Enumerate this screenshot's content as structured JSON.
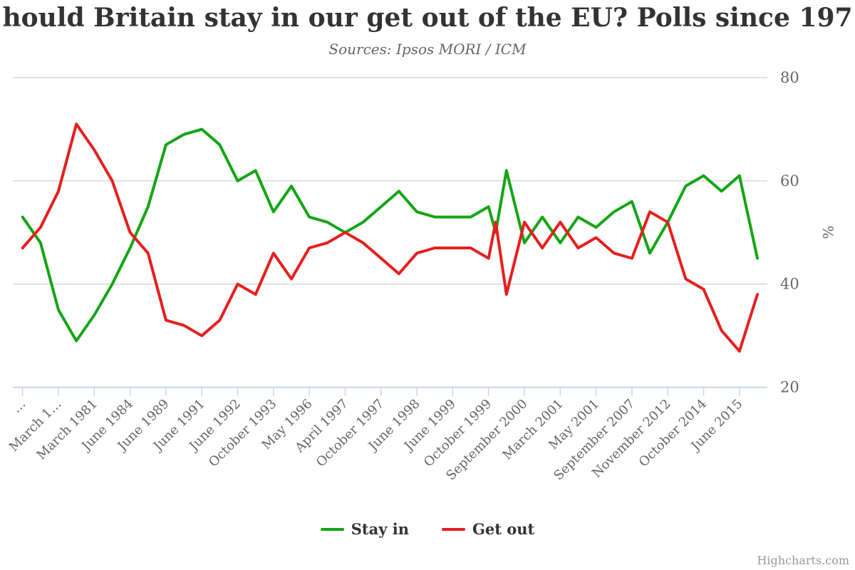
{
  "header": {
    "title_visible": "hould Britain stay in our get out of the EU? Polls since 197",
    "subtitle": "Sources: Ipsos MORI / ICM"
  },
  "credits": "Highcharts.com",
  "colors": {
    "stay_in": "#14A514",
    "get_out": "#E61E1E",
    "grid": "#D9D9D9",
    "axis": "#CCD6EB",
    "label_text": "#666666",
    "title_text": "#333333",
    "credits_text": "#999999"
  },
  "chart_data": {
    "type": "line",
    "title": "hould Britain stay in our get out of the EU? Polls since 197",
    "subtitle": "Sources: Ipsos MORI / ICM",
    "ylabel": "%",
    "ylim": [
      20,
      80
    ],
    "y_ticks": [
      80,
      60,
      40,
      20
    ],
    "grid": "horizontal",
    "legend_position": "bottom-center",
    "x_axis": {
      "tick_labels": [
        {
          "x": 0,
          "label": "…"
        },
        {
          "x": 2,
          "label": "March 1…"
        },
        {
          "x": 4,
          "label": "March 1981"
        },
        {
          "x": 6,
          "label": "June 1984"
        },
        {
          "x": 8,
          "label": "June 1989"
        },
        {
          "x": 10,
          "label": "June 1991"
        },
        {
          "x": 12,
          "label": "June 1992"
        },
        {
          "x": 14,
          "label": "October 1993"
        },
        {
          "x": 16,
          "label": "May 1996"
        },
        {
          "x": 18,
          "label": "April 1997"
        },
        {
          "x": 20,
          "label": "October 1997"
        },
        {
          "x": 22,
          "label": "June 1998"
        },
        {
          "x": 24,
          "label": "June 1999"
        },
        {
          "x": 26,
          "label": "October 1999"
        },
        {
          "x": 28,
          "label": "September 2000"
        },
        {
          "x": 30,
          "label": "March 2001"
        },
        {
          "x": 32,
          "label": "May 2001"
        },
        {
          "x": 34,
          "label": "September 2007"
        },
        {
          "x": 36,
          "label": "November 2012"
        },
        {
          "x": 38,
          "label": "October 2014"
        },
        {
          "x": 40,
          "label": "June 2015"
        }
      ]
    },
    "series": [
      {
        "name": "Stay in",
        "color": "#14A514",
        "points": [
          [
            0,
            53
          ],
          [
            1,
            48
          ],
          [
            2,
            35
          ],
          [
            3,
            29
          ],
          [
            4,
            34
          ],
          [
            5,
            40
          ],
          [
            6,
            47
          ],
          [
            7,
            55
          ],
          [
            8,
            67
          ],
          [
            9,
            69
          ],
          [
            10,
            70
          ],
          [
            11,
            67
          ],
          [
            12,
            60
          ],
          [
            13,
            62
          ],
          [
            14,
            54
          ],
          [
            15,
            59
          ],
          [
            16,
            53
          ],
          [
            17,
            52
          ],
          [
            18,
            50
          ],
          [
            19,
            52
          ],
          [
            20,
            55
          ],
          [
            21,
            58
          ],
          [
            22,
            54
          ],
          [
            23,
            53
          ],
          [
            24,
            53
          ],
          [
            25,
            53
          ],
          [
            26,
            55
          ],
          [
            26.4,
            50
          ],
          [
            27,
            62
          ],
          [
            28,
            48
          ],
          [
            29,
            53
          ],
          [
            30,
            48
          ],
          [
            31,
            53
          ],
          [
            32,
            51
          ],
          [
            33,
            54
          ],
          [
            34,
            56
          ],
          [
            35,
            46
          ],
          [
            36,
            52
          ],
          [
            37,
            59
          ],
          [
            38,
            61
          ],
          [
            39,
            58
          ],
          [
            40,
            61
          ],
          [
            41,
            45
          ]
        ]
      },
      {
        "name": "Get out",
        "color": "#E61E1E",
        "points": [
          [
            0,
            47
          ],
          [
            1,
            51
          ],
          [
            2,
            58
          ],
          [
            3,
            71
          ],
          [
            4,
            66
          ],
          [
            5,
            60
          ],
          [
            6,
            50
          ],
          [
            7,
            46
          ],
          [
            8,
            33
          ],
          [
            9,
            32
          ],
          [
            10,
            30
          ],
          [
            11,
            33
          ],
          [
            12,
            40
          ],
          [
            13,
            38
          ],
          [
            14,
            46
          ],
          [
            15,
            41
          ],
          [
            16,
            47
          ],
          [
            17,
            48
          ],
          [
            18,
            50
          ],
          [
            19,
            48
          ],
          [
            20,
            45
          ],
          [
            21,
            42
          ],
          [
            22,
            46
          ],
          [
            23,
            47
          ],
          [
            24,
            47
          ],
          [
            25,
            47
          ],
          [
            26,
            45
          ],
          [
            26.4,
            52
          ],
          [
            27,
            38
          ],
          [
            28,
            52
          ],
          [
            29,
            47
          ],
          [
            30,
            52
          ],
          [
            31,
            47
          ],
          [
            32,
            49
          ],
          [
            33,
            46
          ],
          [
            34,
            45
          ],
          [
            35,
            54
          ],
          [
            36,
            52
          ],
          [
            37,
            41
          ],
          [
            38,
            39
          ],
          [
            39,
            31
          ],
          [
            40,
            27
          ],
          [
            41,
            38
          ]
        ]
      }
    ]
  }
}
